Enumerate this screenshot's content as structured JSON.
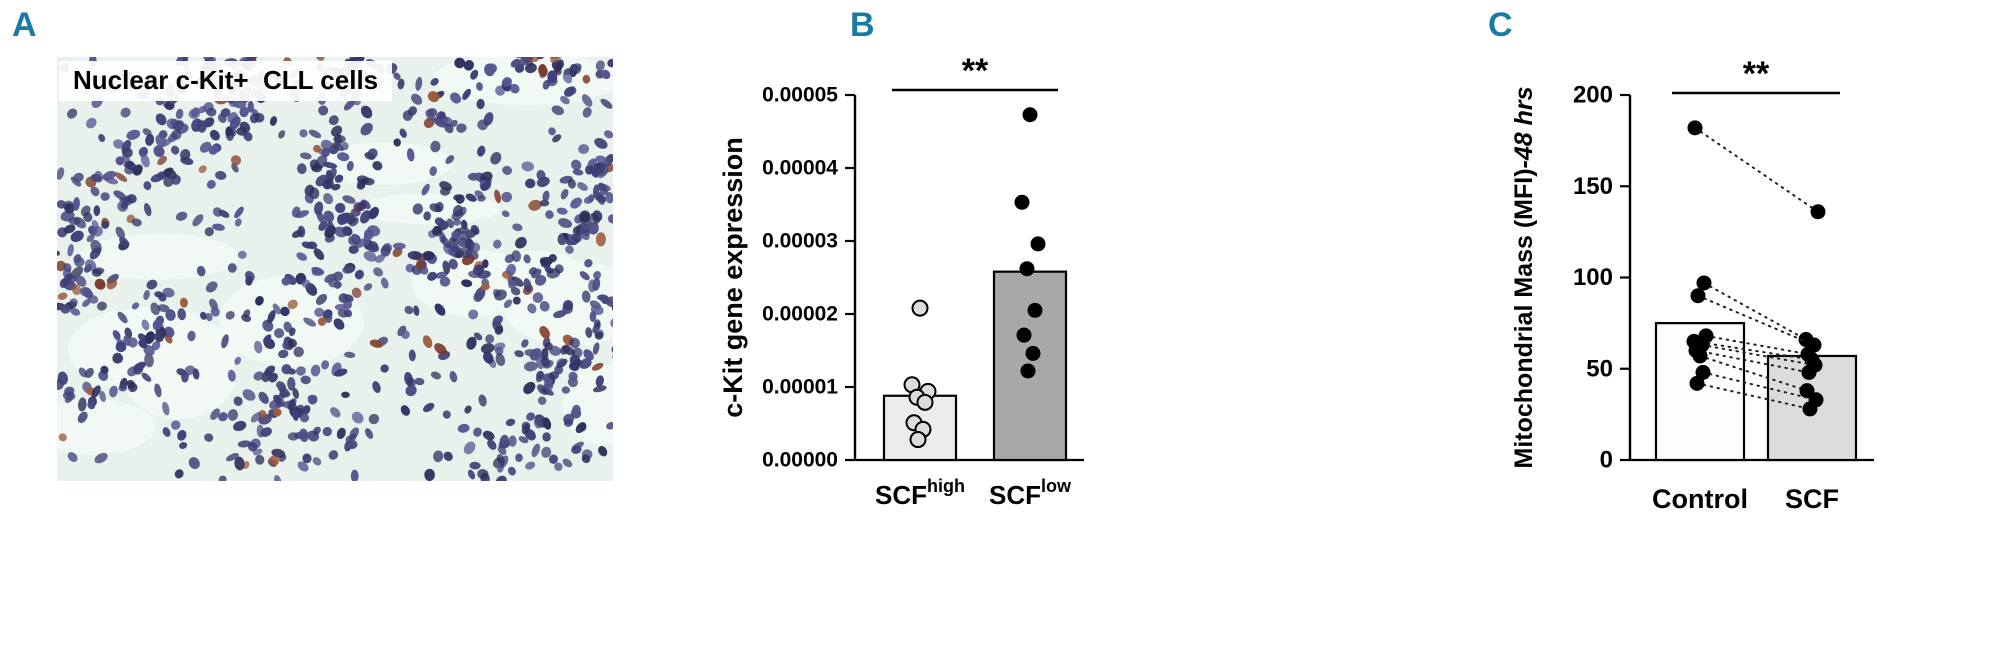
{
  "figure": {
    "background": "#ffffff",
    "accent_color": "#1a7aa4"
  },
  "panel_a": {
    "letter": "A",
    "caption": "Nuclear c-Kit+  CLL cells"
  },
  "panel_b": {
    "letter": "B"
  },
  "panel_c": {
    "letter": "C"
  },
  "micrograph": {
    "bg_color": "#e9f1ec",
    "patch_color": "#f3f9f5",
    "cell_colors": [
      "#3c3c70",
      "#34346a",
      "#4a4a82",
      "#2e2e5a",
      "#555592",
      "#40407a"
    ],
    "accent_cell_colors": [
      "#8a4a34",
      "#9a5a3a",
      "#7a3a2c"
    ]
  },
  "chart_data": [
    {
      "id": "b",
      "type": "bar",
      "title": "",
      "ylabel": "c-Kit gene expression",
      "categories": [
        "SCF^high",
        "SCF^low"
      ],
      "category_labels": [
        {
          "label": "SCF",
          "sup": "high"
        },
        {
          "label": "SCF",
          "sup": "low"
        }
      ],
      "bar_values": [
        8.8e-06,
        2.58e-05
      ],
      "bar_colors": [
        "#ececec",
        "#a8a8a8"
      ],
      "points": [
        [
          2.08e-05,
          1.03e-05,
          9.4e-06,
          8.6e-06,
          7.9e-06,
          5.1e-06,
          4.2e-06,
          2.8e-06
        ],
        [
          4.73e-05,
          3.53e-05,
          2.96e-05,
          2.62e-05,
          2.05e-05,
          1.71e-05,
          1.46e-05,
          1.22e-05
        ]
      ],
      "point_style": [
        "open",
        "filled"
      ],
      "ylim": [
        0,
        5e-05
      ],
      "yticks": [
        0,
        1e-05,
        2e-05,
        3e-05,
        4e-05,
        5e-05
      ],
      "ytick_labels": [
        "0.00000",
        "0.00001",
        "0.00002",
        "0.00003",
        "0.00004",
        "0.00005"
      ],
      "significance": "**",
      "grid": "off",
      "legend": "none"
    },
    {
      "id": "c",
      "type": "bar",
      "title": "",
      "ylabel_main": "Mitochondrial Mass (MFI)",
      "ylabel_italic": "-48 hrs",
      "categories": [
        "Control",
        "SCF"
      ],
      "category_labels": [
        {
          "label": "Control"
        },
        {
          "label": "SCF"
        }
      ],
      "bar_values": [
        75,
        57
      ],
      "bar_colors": [
        "#fdfdfd",
        "#dcdcdc"
      ],
      "pairs": [
        [
          182,
          136
        ],
        [
          97,
          66
        ],
        [
          90,
          63
        ],
        [
          68,
          58
        ],
        [
          65,
          55
        ],
        [
          63,
          52
        ],
        [
          60,
          48
        ],
        [
          57,
          38
        ],
        [
          48,
          33
        ],
        [
          42,
          28
        ]
      ],
      "ylim": [
        0,
        200
      ],
      "yticks": [
        0,
        50,
        100,
        150,
        200
      ],
      "ytick_labels": [
        "0",
        "50",
        "100",
        "150",
        "200"
      ],
      "significance": "**",
      "grid": "off",
      "legend": "none"
    }
  ]
}
